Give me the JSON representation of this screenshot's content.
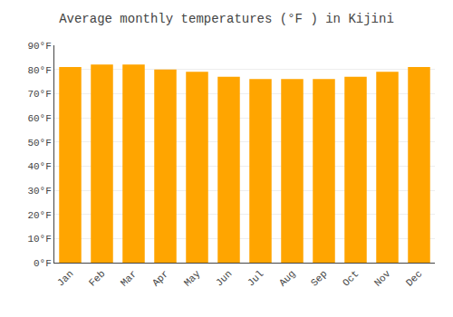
{
  "chart_data": {
    "type": "bar",
    "title": "Average monthly temperatures (°F ) in Kijini",
    "categories": [
      "Jan",
      "Feb",
      "Mar",
      "Apr",
      "May",
      "Jun",
      "Jul",
      "Aug",
      "Sep",
      "Oct",
      "Nov",
      "Dec"
    ],
    "values": [
      81,
      82,
      82,
      80,
      79,
      77,
      76,
      76,
      76,
      77,
      79,
      81
    ],
    "color": "#FFA500",
    "ylim": [
      0,
      90
    ],
    "yticks": [
      {
        "value": 0,
        "label": "0°F"
      },
      {
        "value": 10,
        "label": "10°F"
      },
      {
        "value": 20,
        "label": "20°F"
      },
      {
        "value": 30,
        "label": "30°F"
      },
      {
        "value": 40,
        "label": "40°F"
      },
      {
        "value": 50,
        "label": "50°F"
      },
      {
        "value": 60,
        "label": "60°F"
      },
      {
        "value": 70,
        "label": "70°F"
      },
      {
        "value": 80,
        "label": "80°F"
      },
      {
        "value": 90,
        "label": "90°F"
      }
    ],
    "grid": true
  }
}
